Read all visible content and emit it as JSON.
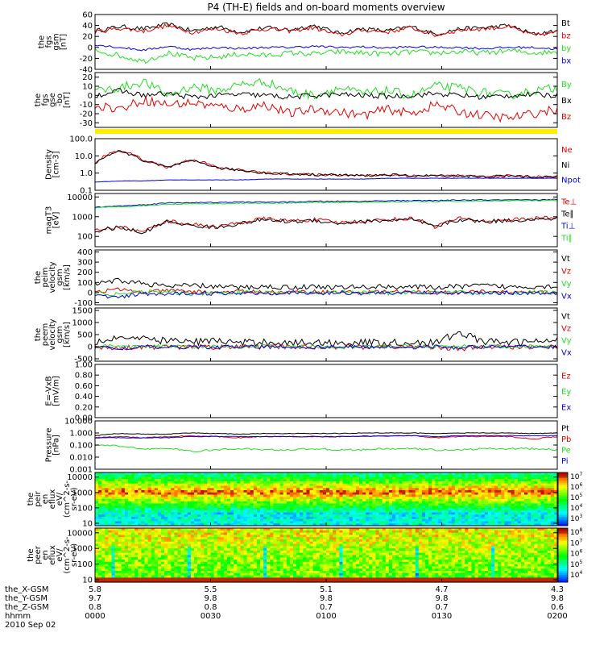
{
  "title": "P4 (TH-E) fields and on-board moments overview",
  "date": "2010 Sep 02",
  "colors": {
    "black": "#000000",
    "red": "#e00000",
    "green": "#22dd22",
    "blue": "#0000dd",
    "yellow": "#ffee00"
  },
  "chart_data": [
    {
      "type": "line",
      "name": "fgs_gsm",
      "ylabel": [
        "the",
        "fgs",
        "gsm",
        "[nT]"
      ],
      "ylim": [
        -40,
        60
      ],
      "log": false,
      "ticks": [
        "60",
        "40",
        "20",
        "0",
        "-20",
        "-40"
      ],
      "series": [
        {
          "name": "Bt",
          "color": "black",
          "base": [
            30,
            38,
            34,
            42,
            30,
            38,
            28,
            36,
            32,
            40,
            26,
            34,
            30,
            38,
            24,
            34,
            36,
            40,
            24,
            30
          ],
          "noise": 4
        },
        {
          "name": "bz",
          "color": "red",
          "base": [
            28,
            35,
            30,
            40,
            28,
            34,
            26,
            34,
            30,
            36,
            22,
            32,
            28,
            36,
            22,
            32,
            34,
            38,
            22,
            28
          ],
          "noise": 4
        },
        {
          "name": "by",
          "color": "green",
          "base": [
            -5,
            -15,
            -25,
            -10,
            -20,
            -18,
            -12,
            -15,
            -10,
            -12,
            -8,
            -10,
            -12,
            -8,
            -10,
            -8,
            -10,
            -6,
            -10,
            -8
          ],
          "noise": 5
        },
        {
          "name": "bx",
          "color": "blue",
          "base": [
            5,
            0,
            -5,
            2,
            -4,
            0,
            -2,
            0,
            0,
            2,
            0,
            1,
            -1,
            1,
            0,
            0,
            -2,
            0,
            0,
            -3
          ],
          "noise": 2
        }
      ]
    },
    {
      "type": "line",
      "name": "fgs_gse",
      "ylabel": [
        "the",
        "fgs",
        "gse",
        "-bo",
        "[nT]"
      ],
      "ylim": [
        -35,
        25
      ],
      "log": false,
      "ticks": [
        "20",
        "10",
        "0",
        "-10",
        "-20",
        "-30"
      ],
      "series": [
        {
          "name": "By",
          "color": "green",
          "base": [
            5,
            8,
            15,
            0,
            10,
            5,
            12,
            15,
            5,
            0,
            8,
            2,
            5,
            0,
            10,
            8,
            3,
            0,
            5,
            8
          ],
          "noise": 5
        },
        {
          "name": "Bx",
          "color": "black",
          "base": [
            0,
            5,
            0,
            2,
            -2,
            0,
            1,
            0,
            -2,
            0,
            1,
            0,
            -1,
            0,
            2,
            0,
            -2,
            0,
            1,
            0
          ],
          "noise": 3
        },
        {
          "name": "Bz",
          "color": "red",
          "base": [
            -10,
            -15,
            -5,
            -10,
            -8,
            -12,
            -15,
            -10,
            -20,
            -15,
            -18,
            -22,
            -15,
            -20,
            -10,
            -18,
            -22,
            -25,
            -20,
            -15
          ],
          "noise": 5
        }
      ]
    },
    {
      "type": "line",
      "name": "density",
      "ylabel": [
        "Density",
        "[cm-3]"
      ],
      "ylim": [
        0.1,
        100
      ],
      "log": true,
      "ticks": [
        "100.0",
        "10.0",
        "1.0",
        "0.1"
      ],
      "series": [
        {
          "name": "Ne",
          "color": "red",
          "base": [
            3,
            20,
            5,
            2,
            6,
            2,
            1.5,
            1,
            0.9,
            0.8,
            0.8,
            0.7,
            0.8,
            0.7,
            0.7,
            0.7,
            0.6,
            0.7,
            0.6,
            0.6
          ],
          "noise": 0.15
        },
        {
          "name": "Ni",
          "color": "black",
          "base": [
            3,
            18,
            5,
            2,
            5,
            2,
            1.4,
            1,
            0.9,
            0.8,
            0.8,
            0.7,
            0.8,
            0.7,
            0.7,
            0.7,
            0.6,
            0.7,
            0.6,
            0.6
          ],
          "noise": 0.15
        },
        {
          "name": "Npot",
          "color": "blue",
          "base": [
            0.3,
            0.35,
            0.35,
            0.4,
            0.4,
            0.4,
            0.4,
            0.45,
            0.45,
            0.45,
            0.45,
            0.45,
            0.5,
            0.5,
            0.5,
            0.5,
            0.5,
            0.5,
            0.5,
            0.5
          ],
          "noise": 0.02
        }
      ]
    },
    {
      "type": "line",
      "name": "temperature",
      "ylabel": [
        "magT3",
        "[eV]"
      ],
      "ylim": [
        30,
        15000
      ],
      "log": true,
      "ticks": [
        "10000",
        "1000",
        "100"
      ],
      "series": [
        {
          "name": "Te⊥",
          "color": "red",
          "base": [
            200,
            300,
            150,
            600,
            400,
            300,
            500,
            800,
            600,
            700,
            500,
            600,
            700,
            800,
            300,
            800,
            600,
            700,
            800,
            900
          ],
          "noise": 0.2
        },
        {
          "name": "Te∥",
          "color": "black",
          "base": [
            180,
            280,
            130,
            550,
            350,
            280,
            450,
            700,
            550,
            650,
            450,
            550,
            650,
            700,
            280,
            700,
            550,
            650,
            700,
            800
          ],
          "noise": 0.2
        },
        {
          "name": "Ti⊥",
          "color": "blue",
          "base": [
            3000,
            3500,
            4000,
            5000,
            5200,
            5200,
            5500,
            5500,
            5500,
            6000,
            6000,
            6000,
            6500,
            6500,
            6500,
            7000,
            7000,
            7000,
            7000,
            7500
          ],
          "noise": 0.05
        },
        {
          "name": "Ti∥",
          "color": "green",
          "base": [
            2800,
            3200,
            3600,
            4200,
            4600,
            4600,
            4800,
            4800,
            5000,
            5200,
            5200,
            5400,
            5600,
            5800,
            5800,
            6000,
            6200,
            6400,
            6400,
            6600
          ],
          "noise": 0.05
        }
      ]
    },
    {
      "type": "line",
      "name": "peim_velocity",
      "ylabel": [
        "the",
        "peim",
        "velocity",
        "gsm",
        "[km/s]"
      ],
      "ylim": [
        -120,
        420
      ],
      "log": false,
      "ticks": [
        "400",
        "300",
        "200",
        "100",
        "0",
        "-100"
      ],
      "series": [
        {
          "name": "Vt",
          "color": "black",
          "base": [
            80,
            120,
            90,
            60,
            70,
            60,
            50,
            60,
            50,
            60,
            50,
            55,
            60,
            55,
            50,
            60,
            70,
            55,
            60,
            65
          ],
          "noise": 25
        },
        {
          "name": "Vz",
          "color": "red",
          "base": [
            10,
            30,
            0,
            20,
            10,
            0,
            10,
            5,
            0,
            10,
            5,
            0,
            10,
            0,
            5,
            0,
            10,
            5,
            0,
            5
          ],
          "noise": 20
        },
        {
          "name": "Vy",
          "color": "green",
          "base": [
            0,
            -20,
            10,
            0,
            -10,
            0,
            5,
            0,
            -5,
            0,
            5,
            0,
            -5,
            0,
            5,
            0,
            -5,
            0,
            5,
            0
          ],
          "noise": 20
        },
        {
          "name": "Vx",
          "color": "blue",
          "base": [
            -30,
            -50,
            -10,
            -20,
            0,
            -10,
            0,
            -5,
            0,
            -10,
            0,
            -5,
            0,
            -5,
            0,
            -5,
            0,
            0,
            -5,
            0
          ],
          "noise": 20
        }
      ]
    },
    {
      "type": "line",
      "name": "peem_velocity",
      "ylabel": [
        "the",
        "peem",
        "velocity",
        "gsm",
        "[km/s]"
      ],
      "ylim": [
        -600,
        1600
      ],
      "log": false,
      "ticks": [
        "1500",
        "1000",
        "500",
        "0",
        "-500"
      ],
      "series": [
        {
          "name": "Vt",
          "color": "black",
          "base": [
            200,
            400,
            300,
            250,
            200,
            250,
            150,
            200,
            150,
            180,
            150,
            180,
            150,
            180,
            150,
            600,
            200,
            180,
            200,
            250
          ],
          "noise": 150
        },
        {
          "name": "Vz",
          "color": "red",
          "base": [
            0,
            -50,
            0,
            -30,
            0,
            -20,
            0,
            -10,
            0,
            -20,
            0,
            -10,
            0,
            -10,
            0,
            -100,
            0,
            -20,
            0,
            -10
          ],
          "noise": 100
        },
        {
          "name": "Vy",
          "color": "green",
          "base": [
            0,
            30,
            0,
            20,
            0,
            10,
            0,
            10,
            0,
            10,
            0,
            10,
            0,
            10,
            0,
            20,
            0,
            10,
            0,
            10
          ],
          "noise": 80
        },
        {
          "name": "Vx",
          "color": "blue",
          "base": [
            0,
            -80,
            0,
            -50,
            0,
            -30,
            0,
            -20,
            0,
            -20,
            0,
            -20,
            0,
            -20,
            0,
            -40,
            0,
            -20,
            0,
            -20
          ],
          "noise": 80
        }
      ]
    },
    {
      "type": "line",
      "name": "efield",
      "ylabel": [
        "E=-VxB",
        "[mV/m]"
      ],
      "ylim": [
        0,
        1
      ],
      "log": false,
      "ticks": [
        "1.00",
        "0.80",
        "0.60",
        "0.40",
        "0.20",
        "0.00"
      ],
      "series": [
        {
          "name": "Ez",
          "color": "red",
          "empty": true
        },
        {
          "name": "Ey",
          "color": "green",
          "empty": true
        },
        {
          "name": "Ex",
          "color": "blue",
          "empty": true
        }
      ]
    },
    {
      "type": "line",
      "name": "pressure",
      "ylabel": [
        "Pressure",
        "[nPa]"
      ],
      "ylim": [
        0.001,
        10
      ],
      "log": true,
      "ticks": [
        "10.000",
        "1.000",
        "0.100",
        "0.010",
        "0.001"
      ],
      "series": [
        {
          "name": "Pt",
          "color": "black",
          "base": [
            0.6,
            0.9,
            0.8,
            0.8,
            1.0,
            0.9,
            0.8,
            0.9,
            0.9,
            0.9,
            0.9,
            1.0,
            1.0,
            1.0,
            0.9,
            1.0,
            1.0,
            1.0,
            0.9,
            1.0
          ],
          "noise": 0.05
        },
        {
          "name": "Pb",
          "color": "red",
          "base": [
            0.4,
            0.5,
            0.4,
            0.5,
            0.6,
            0.5,
            0.4,
            0.5,
            0.5,
            0.5,
            0.5,
            0.5,
            0.6,
            0.6,
            0.4,
            0.5,
            0.5,
            0.5,
            0.3,
            0.5
          ],
          "noise": 0.08
        },
        {
          "name": "Pe",
          "color": "green",
          "base": [
            0.1,
            0.08,
            0.05,
            0.05,
            0.03,
            0.04,
            0.05,
            0.04,
            0.04,
            0.05,
            0.04,
            0.04,
            0.05,
            0.05,
            0.04,
            0.04,
            0.05,
            0.05,
            0.05,
            0.04
          ],
          "noise": 0.15
        },
        {
          "name": "Pi",
          "color": "blue",
          "base": [
            0.4,
            0.4,
            0.4,
            0.4,
            0.5,
            0.5,
            0.5,
            0.5,
            0.5,
            0.5,
            0.5,
            0.55,
            0.55,
            0.6,
            0.5,
            0.6,
            0.6,
            0.6,
            0.6,
            0.6
          ],
          "noise": 0.05
        }
      ]
    },
    {
      "type": "heatmap",
      "name": "peir_spectrogram",
      "ylabel": [
        "the",
        "peir",
        "en",
        "eflux",
        "eV/",
        "(cm^2-s-",
        "sr-eV)"
      ],
      "ylim": [
        7,
        20000
      ],
      "log": true,
      "ticks": [
        "10000",
        "1000",
        "100",
        "10"
      ],
      "colorbar": [
        "10^7",
        "10^6",
        "10^5",
        "10^4",
        "10^3"
      ]
    },
    {
      "type": "heatmap",
      "name": "peer_spectrogram",
      "ylabel": [
        "the",
        "peer",
        "en",
        "eflux",
        "eV/",
        "(cm^2-s-",
        "sr-eV)"
      ],
      "ylim": [
        7,
        20000
      ],
      "log": true,
      "ticks": [
        "10000",
        "1000",
        "100",
        "10"
      ],
      "colorbar": [
        "10^8",
        "10^7",
        "10^6",
        "10^5",
        "10^4"
      ]
    }
  ],
  "footer": {
    "rows": [
      {
        "label": "the_X-GSM",
        "values": [
          "5.8",
          "5.5",
          "5.1",
          "4.7",
          "4.3"
        ]
      },
      {
        "label": "the_Y-GSM",
        "values": [
          "9.7",
          "9.8",
          "9.8",
          "9.8",
          "9.8"
        ]
      },
      {
        "label": "the_Z-GSM",
        "values": [
          "0.8",
          "0.8",
          "0.7",
          "0.7",
          "0.6"
        ]
      },
      {
        "label": "hhmm",
        "values": [
          "0000",
          "0030",
          "0100",
          "0130",
          "0200"
        ]
      }
    ]
  }
}
